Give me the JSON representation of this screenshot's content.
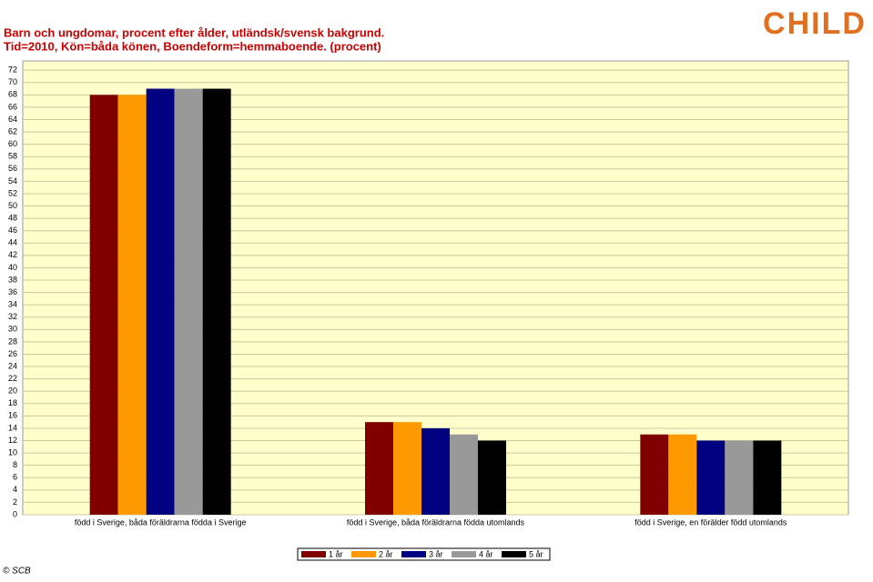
{
  "chart_data": {
    "type": "bar",
    "title": "Barn och ungdomar, procent efter ålder, utländsk/svensk bakgrund.",
    "subtitle": "Tid=2010, Kön=båda könen, Boendeform=hemmaboende. (procent)",
    "logo": "CHILD",
    "footer": "© SCB",
    "categories": [
      "född i Sverige, båda föräldrarna födda i Sverige",
      "född i Sverige, båda föräldrarna födda utomlands",
      "född i Sverige, en förälder född utomlands"
    ],
    "series": [
      {
        "name": "1 år",
        "color": "#800000",
        "values": [
          68,
          15,
          13
        ]
      },
      {
        "name": "2 år",
        "color": "#ff9900",
        "values": [
          68,
          15,
          13
        ]
      },
      {
        "name": "3 år",
        "color": "#000080",
        "values": [
          69,
          14,
          12
        ]
      },
      {
        "name": "4 år",
        "color": "#999999",
        "values": [
          69,
          13,
          12
        ]
      },
      {
        "name": "5 år",
        "color": "#000000",
        "values": [
          69,
          12,
          12
        ]
      }
    ],
    "ylim": [
      0,
      73.5
    ],
    "yticks": [
      0,
      2,
      4,
      6,
      8,
      10,
      12,
      14,
      16,
      18,
      20,
      22,
      24,
      26,
      28,
      30,
      32,
      34,
      36,
      38,
      40,
      42,
      44,
      46,
      48,
      50,
      52,
      54,
      56,
      58,
      60,
      62,
      64,
      66,
      68,
      70,
      72
    ],
    "grid": true
  }
}
